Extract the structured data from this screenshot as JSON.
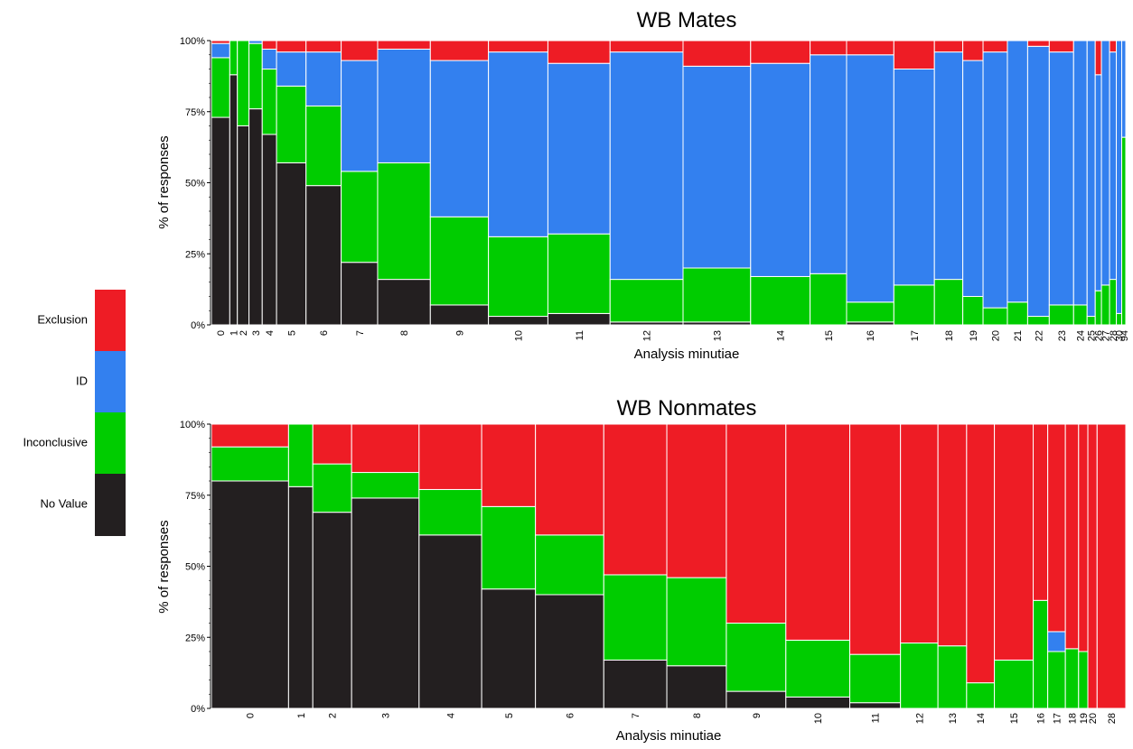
{
  "legend": {
    "items": [
      {
        "label": "Exclusion",
        "color": "#ee1c25"
      },
      {
        "label": "ID",
        "color": "#3380ef"
      },
      {
        "label": "Inconclusive",
        "color": "#00cc00"
      },
      {
        "label": "No Value",
        "color": "#231f20"
      }
    ]
  },
  "chart_data": [
    {
      "type": "bar",
      "subtype": "mosaic-stacked-percent",
      "title": "WB Mates",
      "xlabel": "Analysis minutiae",
      "ylabel": "% of responses",
      "ylim": [
        0,
        100
      ],
      "yticks": [
        "0%",
        "25%",
        "50%",
        "75%",
        "100%"
      ],
      "grid": false,
      "legend_position": "left",
      "series_names": [
        "No Value",
        "Inconclusive",
        "ID",
        "Exclusion"
      ],
      "categories": [
        "0",
        "1",
        "2",
        "3",
        "4",
        "5",
        "6",
        "7",
        "8",
        "9",
        "10",
        "11",
        "12",
        "13",
        "14",
        "15",
        "16",
        "17",
        "18",
        "19",
        "20",
        "21",
        "22",
        "23",
        "24",
        "25",
        "26",
        "27",
        "28",
        "30",
        "94"
      ],
      "column_widths": [
        6.8,
        2.8,
        4.3,
        4.9,
        5.3,
        10.9,
        13.0,
        13.5,
        19.5,
        21.5,
        22.0,
        23.0,
        27.0,
        25.0,
        22.0,
        13.5,
        17.5,
        15.0,
        10.5,
        7.5,
        9.0,
        7.5,
        8.0,
        9.0,
        5.0,
        3.0,
        2.3,
        3.0,
        2.5,
        2.0,
        1.5
      ],
      "series": [
        {
          "name": "No Value",
          "values": [
            73,
            88,
            70,
            76,
            67,
            57,
            49,
            22,
            16,
            7,
            3,
            4,
            1,
            1,
            0,
            0,
            1,
            0,
            0,
            0,
            0,
            0,
            0,
            0,
            0,
            0,
            0,
            0,
            0,
            0,
            0
          ]
        },
        {
          "name": "Inconclusive",
          "values": [
            21,
            12,
            30,
            23,
            23,
            27,
            28,
            32,
            41,
            31,
            28,
            28,
            15,
            19,
            17,
            18,
            7,
            14,
            16,
            10,
            6,
            8,
            3,
            7,
            7,
            3,
            12,
            14,
            16,
            4,
            66
          ]
        },
        {
          "name": "ID",
          "values": [
            5,
            0,
            0,
            1,
            7,
            12,
            19,
            39,
            40,
            55,
            65,
            60,
            80,
            71,
            75,
            77,
            87,
            76,
            80,
            83,
            90,
            92,
            95,
            89,
            93,
            97,
            76,
            86,
            80,
            96,
            34
          ]
        },
        {
          "name": "Exclusion",
          "values": [
            1,
            0,
            0,
            0,
            3,
            4,
            4,
            7,
            3,
            7,
            4,
            8,
            4,
            9,
            8,
            5,
            5,
            10,
            4,
            7,
            4,
            0,
            2,
            4,
            0,
            0,
            12,
            0,
            4,
            0,
            0
          ]
        }
      ]
    },
    {
      "type": "bar",
      "subtype": "mosaic-stacked-percent",
      "title": "WB Nonmates",
      "xlabel": "Analysis minutiae",
      "ylabel": "% of responses",
      "ylim": [
        0,
        100
      ],
      "yticks": [
        "0%",
        "25%",
        "50%",
        "75%",
        "100%"
      ],
      "grid": false,
      "legend_position": "left",
      "series_names": [
        "No Value",
        "Inconclusive",
        "ID",
        "Exclusion"
      ],
      "categories": [
        "0",
        "1",
        "2",
        "3",
        "4",
        "5",
        "6",
        "7",
        "8",
        "9",
        "10",
        "11",
        "12",
        "13",
        "14",
        "15",
        "16",
        "17",
        "18",
        "19",
        "20",
        "28"
      ],
      "column_widths": [
        17.5,
        5.5,
        8.8,
        15.3,
        14.2,
        12.2,
        15.5,
        14.3,
        13.5,
        13.5,
        14.5,
        11.5,
        8.5,
        6.5,
        6.3,
        8.8,
        3.3,
        4.0,
        3.0,
        2.1,
        2.1,
        6.5
      ],
      "series": [
        {
          "name": "No Value",
          "values": [
            80,
            78,
            69,
            74,
            61,
            42,
            40,
            17,
            15,
            6,
            4,
            2,
            0,
            0,
            0,
            0,
            0,
            0,
            0,
            0,
            0,
            0
          ]
        },
        {
          "name": "Inconclusive",
          "values": [
            12,
            22,
            17,
            9,
            16,
            29,
            21,
            30,
            31,
            24,
            20,
            17,
            23,
            22,
            9,
            17,
            38,
            20,
            21,
            20,
            0,
            0
          ]
        },
        {
          "name": "ID",
          "values": [
            0,
            0,
            0,
            0,
            0,
            0,
            0,
            0,
            0,
            0,
            0,
            0,
            0,
            0,
            0,
            0,
            0,
            7,
            0,
            0,
            0,
            0
          ]
        },
        {
          "name": "Exclusion",
          "values": [
            8,
            0,
            14,
            17,
            23,
            29,
            39,
            53,
            54,
            70,
            76,
            81,
            77,
            78,
            91,
            83,
            62,
            73,
            79,
            80,
            100,
            100
          ]
        }
      ]
    }
  ]
}
